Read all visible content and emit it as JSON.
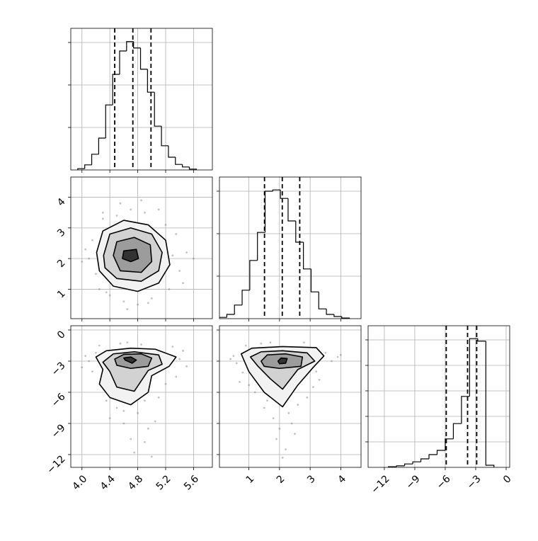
{
  "chart_data": [
    {
      "type": "histogram",
      "xlim": [
        3.84,
        5.87
      ],
      "ylim": [
        0,
        3333
      ],
      "xticks": [
        4,
        4.4,
        4.8,
        5.2,
        5.6
      ],
      "yticks": [
        1000,
        2000,
        3000
      ],
      "grid": true,
      "x_tick_labels": false,
      "y_tick_labels": false,
      "color": "#000000",
      "bins": [
        3.94,
        4.04,
        4.14,
        4.24,
        4.34,
        4.44,
        4.54,
        4.64,
        4.74,
        4.84,
        4.94,
        5.04,
        5.14,
        5.24,
        5.34,
        5.44,
        5.54,
        5.64
      ],
      "values": [
        30,
        120,
        370,
        750,
        1530,
        2250,
        2800,
        3020,
        2870,
        2370,
        1830,
        1030,
        570,
        300,
        130,
        70,
        20
      ],
      "quantiles": [
        4.47,
        4.73,
        4.99
      ]
    },
    {
      "type": "contour",
      "xlim": [
        3.84,
        5.87
      ],
      "ylim": [
        0.04,
        4.66
      ],
      "xticks": [
        4,
        4.4,
        4.8,
        5.2,
        5.6
      ],
      "yticks": [
        1,
        2,
        3,
        4
      ],
      "grid": true,
      "x_tick_labels": false,
      "y_tick_labels": true,
      "color": "#000000",
      "x": [
        4.1,
        4.15,
        4.2,
        4.05,
        4.3,
        4.35,
        5.3,
        5.4,
        5.35,
        5.5,
        4.9,
        4.7,
        4.5,
        4.6,
        5.0,
        5.2,
        4.4,
        4.25,
        5.45,
        4.0,
        4.8,
        4.55,
        5.1,
        4.95,
        4.65,
        5.25,
        4.3,
        4.85,
        5.6,
        4.45
      ],
      "y": [
        2.0,
        2.6,
        1.5,
        2.3,
        3.3,
        0.9,
        2.1,
        1.6,
        2.8,
        2.2,
        3.5,
        3.6,
        3.4,
        0.6,
        0.7,
        3.1,
        0.8,
        1.0,
        1.2,
        1.9,
        0.5,
        3.8,
        3.6,
        0.55,
        0.35,
        1.0,
        3.5,
        3.9,
        2.0,
        1.3
      ],
      "contours": [
        {
          "x": [
            4.21,
            4.3,
            4.6,
            4.95,
            5.2,
            5.26,
            5.1,
            4.8,
            4.45,
            4.25
          ],
          "y": [
            2.2,
            2.9,
            3.25,
            3.1,
            2.6,
            1.8,
            1.2,
            0.93,
            1.1,
            1.6
          ]
        },
        {
          "x": [
            4.31,
            4.4,
            4.7,
            5.0,
            5.15,
            5.1,
            4.85,
            4.5,
            4.33
          ],
          "y": [
            2.1,
            2.8,
            3.0,
            2.8,
            2.2,
            1.6,
            1.26,
            1.35,
            1.7
          ]
        },
        {
          "x": [
            4.45,
            4.5,
            4.75,
            4.98,
            5.0,
            4.85,
            4.55
          ],
          "y": [
            2.1,
            2.55,
            2.69,
            2.45,
            1.9,
            1.55,
            1.6
          ]
        },
        {
          "x": [
            4.58,
            4.6,
            4.78,
            4.81,
            4.7
          ],
          "y": [
            2.0,
            2.25,
            2.3,
            2.0,
            1.9
          ]
        }
      ]
    },
    {
      "type": "histogram",
      "xlim": [
        0.04,
        4.66
      ],
      "ylim": [
        0,
        3333
      ],
      "xticks": [
        1,
        2,
        3,
        4
      ],
      "yticks": [
        1000,
        2000,
        3000
      ],
      "grid": true,
      "x_tick_labels": false,
      "y_tick_labels": false,
      "color": "#000000",
      "bins": [
        0.03,
        0.28,
        0.53,
        0.78,
        1.03,
        1.28,
        1.53,
        1.78,
        2.03,
        2.28,
        2.53,
        2.78,
        3.03,
        3.28,
        3.53,
        3.78,
        4.03,
        4.28
      ],
      "values": [
        30,
        100,
        320,
        670,
        1370,
        2030,
        3000,
        3030,
        2830,
        2300,
        1800,
        1170,
        630,
        230,
        100,
        50,
        15
      ],
      "quantiles": [
        1.51,
        2.09,
        2.66
      ]
    },
    {
      "type": "contour",
      "xlim": [
        3.84,
        5.87
      ],
      "ylim": [
        -13.23,
        0.41
      ],
      "xticks": [
        {
          "value": 4,
          "label": "4.0"
        },
        4.4,
        4.8,
        5.2,
        5.6
      ],
      "yticks": [
        {
          "value": -12,
          "label": "−12"
        },
        {
          "value": -9,
          "label": "−9"
        },
        {
          "value": -6,
          "label": "−6"
        },
        {
          "value": -3,
          "label": "−3"
        },
        0
      ],
      "grid": true,
      "x_tick_labels": true,
      "y_tick_labels": true,
      "color": "#000000",
      "x": [
        4.1,
        4.2,
        4.15,
        4.3,
        5.4,
        5.5,
        5.35,
        4.5,
        4.8,
        4.9,
        4.6,
        4.7,
        5.1,
        5.2,
        4.4,
        4.05,
        4.95,
        4.75,
        5.3,
        4.55,
        4.65,
        4.85,
        4.35,
        5.0,
        5.45,
        4.25,
        4.0,
        4.9,
        4.6,
        5.05
      ],
      "y": [
        -3.0,
        -2.2,
        -4.0,
        -5.5,
        -2.8,
        -3.5,
        -4.5,
        -7.5,
        -8.0,
        -6.8,
        -9.0,
        -10.5,
        -6.5,
        -5.2,
        -8.5,
        -2.5,
        -9.5,
        -11.8,
        -1.6,
        -1.3,
        -1.2,
        -1.4,
        -6.8,
        -12.2,
        -2.0,
        -1.5,
        -3.6,
        -10.8,
        -7.8,
        -8.8
      ],
      "contours": [
        {
          "x": [
            4.2,
            4.35,
            4.7,
            5.05,
            5.35,
            5.25,
            5.0,
            4.95,
            4.7,
            4.4,
            4.25,
            4.3
          ],
          "y": [
            -2.6,
            -2.0,
            -1.75,
            -1.85,
            -2.6,
            -3.5,
            -4.4,
            -6.0,
            -7.2,
            -6.5,
            -5.2,
            -3.8
          ]
        },
        {
          "x": [
            4.3,
            4.45,
            4.75,
            5.1,
            5.15,
            4.95,
            4.75,
            4.5,
            4.4
          ],
          "y": [
            -3.1,
            -2.3,
            -2.1,
            -2.4,
            -3.3,
            -3.9,
            -5.9,
            -5.5,
            -4.0
          ]
        },
        {
          "x": [
            4.47,
            4.6,
            4.85,
            5.0,
            4.95,
            4.7,
            4.5
          ],
          "y": [
            -2.8,
            -2.35,
            -2.3,
            -2.7,
            -3.5,
            -3.7,
            -3.4
          ]
        },
        {
          "x": [
            4.6,
            4.62,
            4.72,
            4.78,
            4.7
          ],
          "y": [
            -2.7,
            -2.9,
            -3.2,
            -2.9,
            -2.6
          ]
        }
      ]
    },
    {
      "type": "contour",
      "xlim": [
        0.04,
        4.66
      ],
      "ylim": [
        -13.23,
        0.41
      ],
      "xticks": [
        1,
        2,
        3,
        4
      ],
      "yticks": [
        -12,
        -9,
        -6,
        -3,
        0
      ],
      "grid": true,
      "x_tick_labels": true,
      "y_tick_labels": false,
      "color": "#000000",
      "x": [
        0.5,
        0.6,
        0.8,
        0.9,
        3.5,
        3.7,
        3.9,
        3.3,
        1.2,
        1.5,
        1.8,
        2.0,
        2.3,
        2.6,
        2.9,
        1.0,
        3.1,
        2.2,
        1.9,
        2.5,
        0.4,
        4.0,
        1.4,
        2.8,
        1.7,
        2.1,
        2.4,
        3.2,
        0.7,
        1.6
      ],
      "y": [
        -2.5,
        -3.2,
        -4.1,
        -1.5,
        -2.2,
        -3.0,
        -2.6,
        -4.8,
        -6.0,
        -7.5,
        -8.5,
        -9.5,
        -8.0,
        -7.2,
        -6.5,
        -5.3,
        -5.5,
        -11.5,
        -10.5,
        -10.0,
        -2.8,
        -2.4,
        -1.3,
        -1.2,
        -1.2,
        -12.3,
        -9.0,
        -4.0,
        -5.0,
        -6.8
      ],
      "contours": [
        {
          "x": [
            0.75,
            1.1,
            2.1,
            3.2,
            3.45,
            3.1,
            2.6,
            2.1,
            1.5,
            1.0
          ],
          "y": [
            -2.3,
            -1.75,
            -1.6,
            -1.7,
            -2.5,
            -3.6,
            -5.3,
            -7.4,
            -6.0,
            -4.0
          ]
        },
        {
          "x": [
            1.05,
            1.4,
            2.1,
            2.9,
            3.15,
            2.6,
            2.1,
            1.7,
            1.3
          ],
          "y": [
            -2.6,
            -2.1,
            -2.0,
            -2.2,
            -3.0,
            -3.8,
            -5.7,
            -4.7,
            -3.5
          ]
        },
        {
          "x": [
            1.4,
            1.6,
            2.2,
            2.75,
            2.7,
            2.0,
            1.5
          ],
          "y": [
            -3.0,
            -2.4,
            -2.3,
            -2.6,
            -3.5,
            -3.7,
            -3.5
          ]
        },
        {
          "x": [
            1.95,
            2.05,
            2.25,
            2.2,
            2.0
          ],
          "y": [
            -3.0,
            -2.7,
            -2.75,
            -3.2,
            -3.25
          ]
        }
      ]
    },
    {
      "type": "histogram",
      "xlim": [
        -13.6,
        0.35
      ],
      "ylim": [
        0,
        3333
      ],
      "xticks": [
        {
          "value": -12,
          "label": "−12"
        },
        {
          "value": -9,
          "label": "−9"
        },
        {
          "value": -6,
          "label": "−6"
        },
        {
          "value": -3,
          "label": "−3"
        },
        0
      ],
      "yticks": [
        600,
        1200,
        1800,
        2400,
        3000
      ],
      "grid": true,
      "x_tick_labels": true,
      "y_tick_labels": false,
      "color": "#000000",
      "bins": [
        -11.6,
        -10.8,
        -10.0,
        -9.2,
        -8.4,
        -7.6,
        -6.8,
        -6.0,
        -5.2,
        -4.4,
        -3.6,
        -2.8,
        -2.0,
        -1.2
      ],
      "values": [
        15,
        35,
        80,
        130,
        200,
        300,
        400,
        670,
        1030,
        1670,
        3030,
        2970,
        50
      ],
      "quantiles": [
        -5.9,
        -3.8,
        -2.9
      ]
    }
  ]
}
